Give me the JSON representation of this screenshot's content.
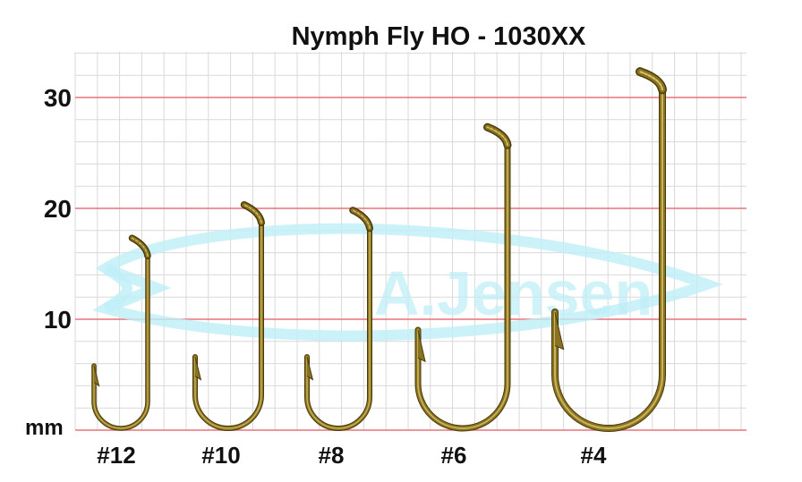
{
  "title": "Nymph Fly HO - 1030XX",
  "unit": "mm",
  "y_axis": {
    "ticks": [
      10,
      20,
      30
    ],
    "range": [
      0,
      30
    ]
  },
  "watermark": {
    "text": "A.Jensen"
  },
  "hooks": [
    {
      "label": "#12",
      "height_mm": 17
    },
    {
      "label": "#10",
      "height_mm": 20
    },
    {
      "label": "#8",
      "height_mm": 19.5
    },
    {
      "label": "#6",
      "height_mm": 27
    },
    {
      "label": "#4",
      "height_mm": 32
    }
  ],
  "colors": {
    "grid": "#d9d9d9",
    "major_line": "#e8737a",
    "hook_bronze": "#8a7320",
    "hook_highlight": "#d9c46a",
    "hook_dark": "#4a3a0a",
    "watermark": "#bfeff7"
  }
}
